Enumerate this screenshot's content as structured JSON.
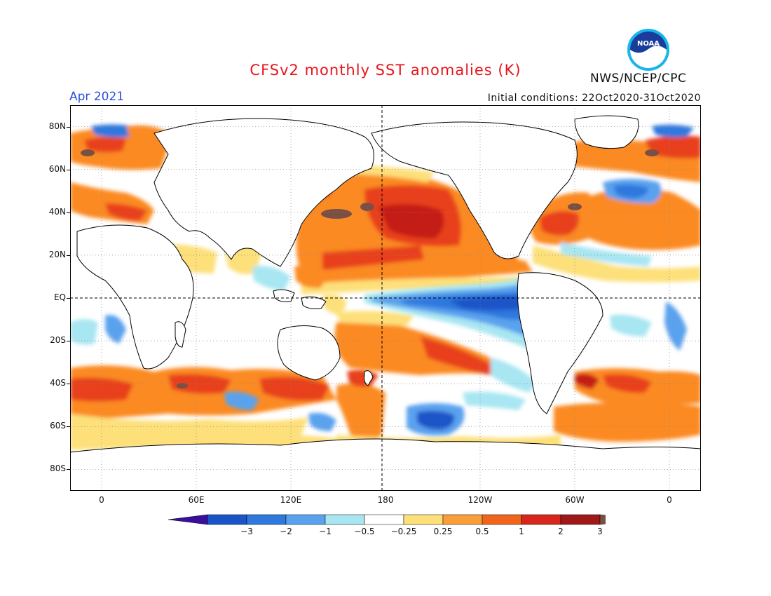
{
  "header": {
    "title": "CFSv2 monthly SST anomalies (K)",
    "month": "Apr 2021",
    "initial_conditions": "Initial conditions: 22Oct2020-31Oct2020",
    "agency": "NWS/NCEP/CPC",
    "logo_text": "NOAA"
  },
  "map": {
    "lat_labels": [
      "80N",
      "60N",
      "40N",
      "20N",
      "EQ",
      "20S",
      "40S",
      "60S",
      "80S"
    ],
    "lat_values": [
      80,
      60,
      40,
      20,
      0,
      -20,
      -40,
      -60,
      -80
    ],
    "lon_labels": [
      "0",
      "60E",
      "120E",
      "180",
      "120W",
      "60W",
      "0"
    ],
    "lon_values": [
      0,
      60,
      120,
      180,
      240,
      300,
      360
    ],
    "lon_range": [
      -20,
      380
    ],
    "lat_range": [
      -90,
      90
    ],
    "reference_lines": [
      "equator",
      "dateline"
    ]
  },
  "colorbar": {
    "ticks": [
      "−3",
      "−2",
      "−1",
      "−0.5",
      "−0.25",
      "0.25",
      "0.5",
      "1",
      "2",
      "3"
    ],
    "colors": [
      "#3a0fa0",
      "#1a55c8",
      "#2f78de",
      "#5aa2ee",
      "#a8e6f2",
      "#ffffff",
      "#fde07a",
      "#fb9e3a",
      "#f0641c",
      "#d8261c",
      "#a01818",
      "#7a5045"
    ]
  },
  "colors": {
    "title_red": "#e8141a",
    "month_blue": "#2b4fd8",
    "warm1": "#fde07a",
    "warm2": "#fb8a24",
    "warm3": "#e8401a",
    "warm4": "#c41a14",
    "extreme_warm": "#7a5045",
    "cool1": "#a8e6f2",
    "cool2": "#5aa2ee",
    "cool3": "#2f78de",
    "cool4": "#1a55c8"
  }
}
